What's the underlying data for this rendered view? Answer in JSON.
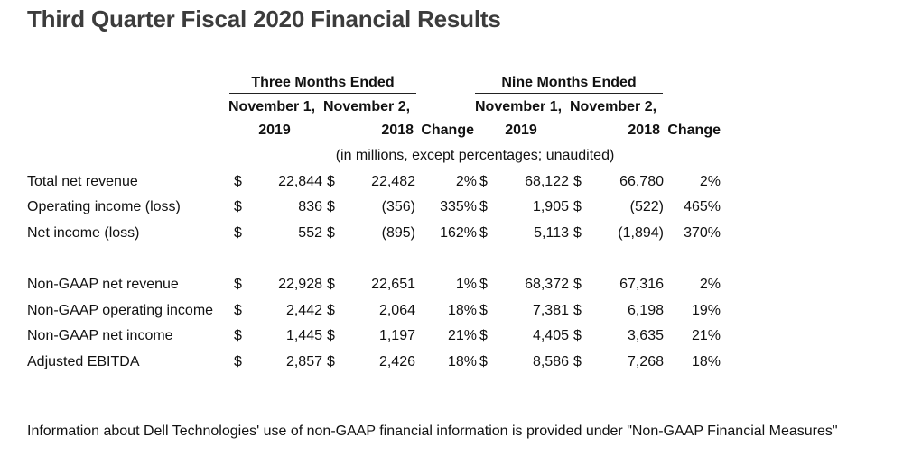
{
  "title": "Third Quarter Fiscal 2020 Financial Results",
  "headers": {
    "three_months": "Three Months Ended",
    "nine_months": "Nine Months Ended",
    "nov1": "November 1,",
    "nov2": "November 2,",
    "y2019": "2019",
    "y2018": "2018",
    "change": "Change",
    "units": "(in millions, except percentages; unaudited)"
  },
  "rows": [
    {
      "label": "Total net revenue",
      "d1": "$",
      "q19": "22,844",
      "d2": "$",
      "q18": "22,482",
      "qchg": "2%",
      "d3": "$",
      "n19": "68,122",
      "d4": "$",
      "n18": "66,780",
      "nchg": "2%"
    },
    {
      "label": "Operating income (loss)",
      "d1": "$",
      "q19": "836",
      "d2": "$",
      "q18": "(356)",
      "qchg": "335%",
      "d3": "$",
      "n19": "1,905",
      "d4": "$",
      "n18": "(522)",
      "nchg": "465%"
    },
    {
      "label": "Net income (loss)",
      "d1": "$",
      "q19": "552",
      "d2": "$",
      "q18": "(895)",
      "qchg": "162%",
      "d3": "$",
      "n19": "5,113",
      "d4": "$",
      "n18": "(1,894)",
      "nchg": "370%"
    },
    {
      "label": "Non-GAAP net revenue",
      "d1": "$",
      "q19": "22,928",
      "d2": "$",
      "q18": "22,651",
      "qchg": "1%",
      "d3": "$",
      "n19": "68,372",
      "d4": "$",
      "n18": "67,316",
      "nchg": "2%"
    },
    {
      "label": "Non-GAAP operating income",
      "d1": "$",
      "q19": "2,442",
      "d2": "$",
      "q18": "2,064",
      "qchg": "18%",
      "d3": "$",
      "n19": "7,381",
      "d4": "$",
      "n18": "6,198",
      "nchg": "19%"
    },
    {
      "label": "Non-GAAP net income",
      "d1": "$",
      "q19": "1,445",
      "d2": "$",
      "q18": "1,197",
      "qchg": "21%",
      "d3": "$",
      "n19": "4,405",
      "d4": "$",
      "n18": "3,635",
      "nchg": "21%"
    },
    {
      "label": "Adjusted EBITDA",
      "d1": "$",
      "q19": "2,857",
      "d2": "$",
      "q18": "2,426",
      "qchg": "18%",
      "d3": "$",
      "n19": "8,586",
      "d4": "$",
      "n18": "7,268",
      "nchg": "18%"
    }
  ],
  "footer": "Information about Dell Technologies' use of non-GAAP financial information is provided under \"Non-GAAP Financial Measures\""
}
